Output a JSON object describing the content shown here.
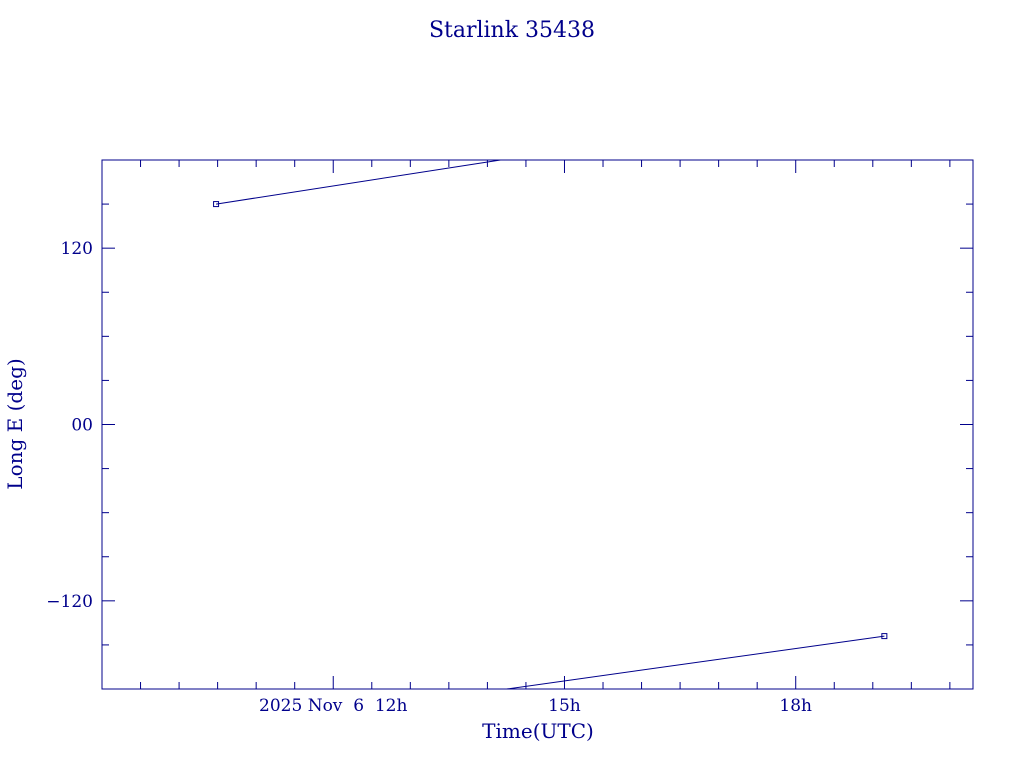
{
  "chart_data": {
    "type": "line",
    "title": "Starlink 35438",
    "xlabel": "Time(UTC)",
    "ylabel": "Long E (deg)",
    "x_unit": "hours UTC, 2025 Nov 6",
    "xlim": [
      9.0,
      20.3
    ],
    "ylim": [
      -180,
      180
    ],
    "x_tick_labels": [
      {
        "x": 12,
        "label": "2025 Nov  6  12h"
      },
      {
        "x": 15,
        "label": "15h"
      },
      {
        "x": 18,
        "label": "18h"
      }
    ],
    "x_minor_step": 0.5,
    "y_ticks": [
      {
        "y": 120,
        "label": "120"
      },
      {
        "y": 0,
        "label": "00"
      },
      {
        "y": -120,
        "label": "−120"
      }
    ],
    "y_minor_step": 30,
    "grid": false,
    "series": [
      {
        "segments": [
          [
            {
              "x": 10.48,
              "y": 150.0
            },
            {
              "x": 14.17,
              "y": 180.0
            }
          ],
          [
            {
              "x": 14.25,
              "y": -180.0
            },
            {
              "x": 19.15,
              "y": -144.0
            }
          ]
        ],
        "markers": [
          {
            "x": 10.48,
            "y": 150.0
          },
          {
            "x": 19.15,
            "y": -144.0
          }
        ]
      }
    ],
    "colors": {
      "ink": "#00008b"
    }
  }
}
